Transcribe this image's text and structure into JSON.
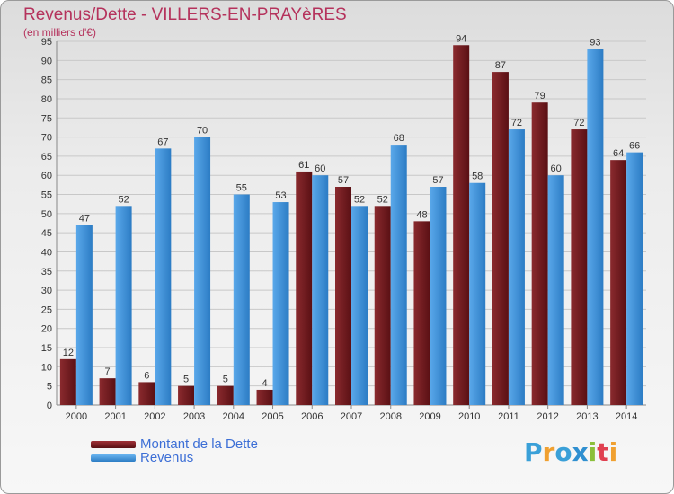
{
  "chart_data": {
    "type": "bar",
    "title": "Revenus/Dette - VILLERS-EN-PRAYèRES",
    "subtitle": "(en milliers d'€)",
    "categories": [
      "2000",
      "2001",
      "2002",
      "2003",
      "2004",
      "2005",
      "2006",
      "2007",
      "2008",
      "2009",
      "2010",
      "2011",
      "2012",
      "2013",
      "2014"
    ],
    "series": [
      {
        "name": "Montant de la Dette",
        "color": "#7a1f24",
        "values": [
          12,
          7,
          6,
          5,
          5,
          4,
          61,
          57,
          52,
          48,
          94,
          87,
          79,
          72,
          64
        ]
      },
      {
        "name": "Revenus",
        "color": "#3d8fd8",
        "values": [
          47,
          52,
          67,
          70,
          55,
          53,
          60,
          52,
          68,
          57,
          58,
          72,
          60,
          93,
          66
        ]
      }
    ],
    "ylim": [
      0,
      95
    ],
    "ytick_step": 5,
    "grid": true,
    "legend_position": "bottom-left"
  },
  "legend": [
    {
      "label": "Montant de la Dette"
    },
    {
      "label": "Revenus"
    }
  ],
  "logo": {
    "text": "Proxiti",
    "letters": [
      "P",
      "r",
      "o",
      "x",
      "i",
      "t",
      "i"
    ],
    "colors": [
      "#3aa0d8",
      "#f0a030",
      "#3aa0d8",
      "#2f8fd0",
      "#8bbf3a",
      "#e04050",
      "#f0a030"
    ]
  }
}
